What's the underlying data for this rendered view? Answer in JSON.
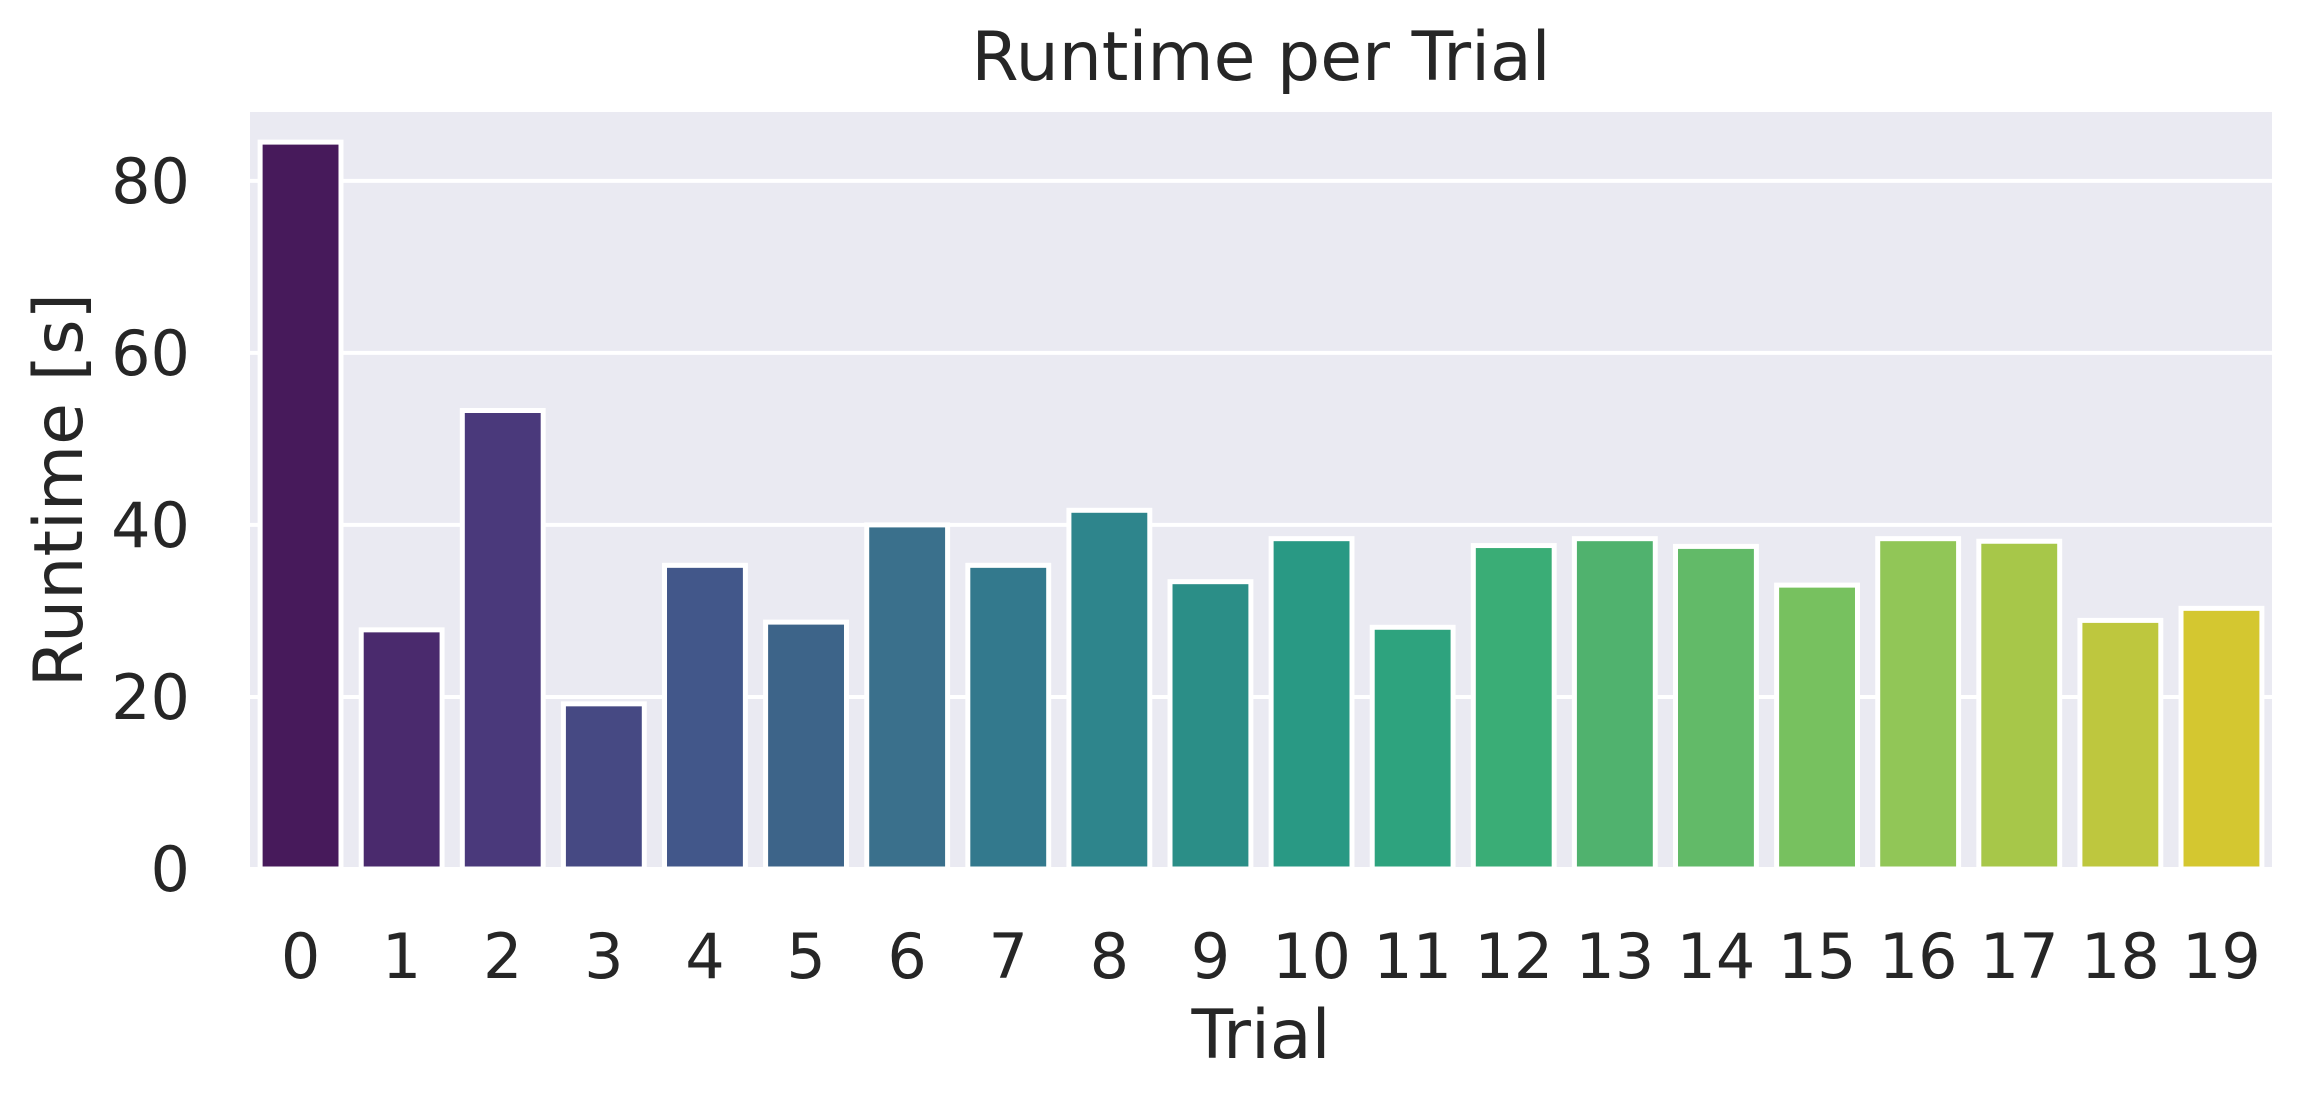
{
  "chart_data": {
    "type": "bar",
    "title": "Runtime per Trial",
    "xlabel": "Trial",
    "ylabel": "Runtime [s]",
    "categories": [
      "0",
      "1",
      "2",
      "3",
      "4",
      "5",
      "6",
      "7",
      "8",
      "9",
      "10",
      "11",
      "12",
      "13",
      "14",
      "15",
      "16",
      "17",
      "18",
      "19"
    ],
    "values": [
      84.5,
      27.8,
      53.3,
      19.2,
      35.3,
      28.7,
      40.0,
      35.3,
      41.7,
      33.4,
      38.4,
      28.1,
      37.6,
      38.4,
      37.5,
      33.0,
      38.4,
      38.1,
      28.9,
      30.3
    ],
    "yticks": [
      0,
      20,
      40,
      60,
      80
    ],
    "ylim": [
      0,
      88
    ],
    "grid": true,
    "colors": {
      "axes_background": "#eaeaf2",
      "grid": "#ffffff",
      "bar_edge": "#ffffff",
      "text": "#262626",
      "palette": [
        "#471a5b",
        "#4a2a6d",
        "#4a397b",
        "#464983",
        "#42578a",
        "#3d6489",
        "#3a708c",
        "#33798d",
        "#2e858c",
        "#2b8e87",
        "#299984",
        "#2ea37e",
        "#3aad76",
        "#50b26e",
        "#62ba68",
        "#77c15f",
        "#91c657",
        "#a7c749",
        "#bec73e",
        "#d4c730"
      ]
    }
  }
}
